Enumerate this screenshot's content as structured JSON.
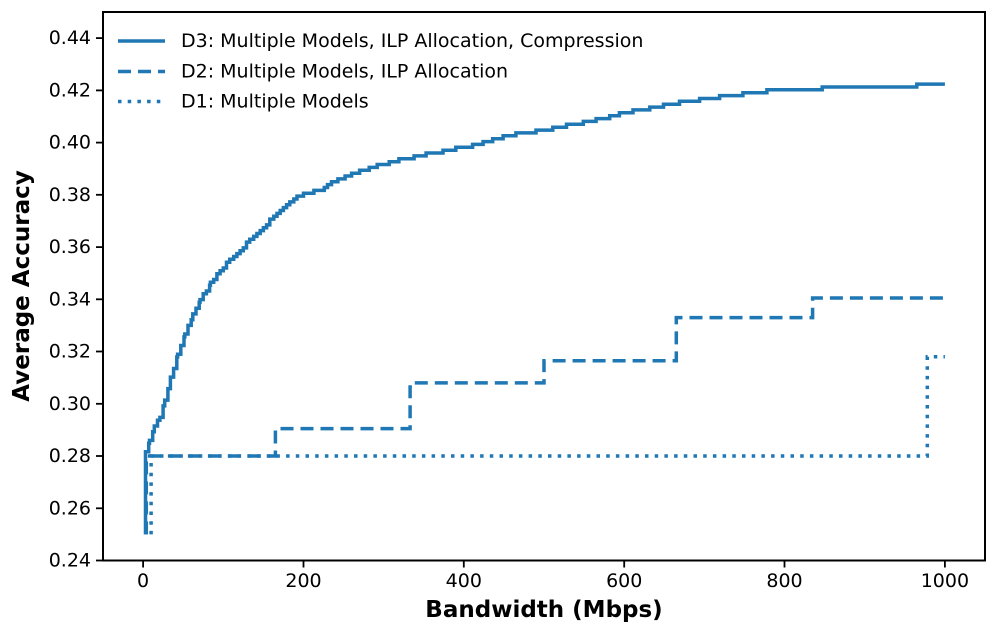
{
  "chart_data": {
    "type": "line",
    "title": "",
    "xlabel": "Bandwidth (Mbps)",
    "ylabel": "Average Accuracy",
    "xlim": [
      -50,
      1050
    ],
    "ylim": [
      0.24,
      0.45
    ],
    "x_ticks": [
      0,
      200,
      400,
      600,
      800,
      1000
    ],
    "x_tick_labels": [
      "0",
      "200",
      "400",
      "600",
      "800",
      "1000"
    ],
    "y_ticks": [
      0.24,
      0.26,
      0.28,
      0.3,
      0.32,
      0.34,
      0.36,
      0.38,
      0.4,
      0.42,
      0.44
    ],
    "y_tick_labels": [
      "0.24",
      "0.26",
      "0.28",
      "0.30",
      "0.32",
      "0.34",
      "0.36",
      "0.38",
      "0.40",
      "0.42",
      "0.44"
    ],
    "grid": false,
    "background": "#ffffff",
    "text_color": "#000000",
    "spine_color": "#000000",
    "line_color": "#1f77b4",
    "legend_position": "upper-left",
    "series": [
      {
        "name": "D3",
        "label": "D3: Multiple Models, ILP Allocation, Compression",
        "style": "solid",
        "render": "staircase",
        "points": [
          [
            3,
            0.25
          ],
          [
            3,
            0.2815
          ],
          [
            8,
            0.286
          ],
          [
            14,
            0.291
          ],
          [
            21,
            0.295
          ],
          [
            27,
            0.301
          ],
          [
            34,
            0.31
          ],
          [
            43,
            0.319
          ],
          [
            52,
            0.327
          ],
          [
            62,
            0.334
          ],
          [
            71,
            0.34
          ],
          [
            84,
            0.346
          ],
          [
            96,
            0.351
          ],
          [
            109,
            0.3555
          ],
          [
            121,
            0.359
          ],
          [
            134,
            0.363
          ],
          [
            146,
            0.3665
          ],
          [
            159,
            0.3705
          ],
          [
            171,
            0.374
          ],
          [
            184,
            0.3775
          ],
          [
            196,
            0.38
          ],
          [
            209,
            0.381
          ],
          [
            222,
            0.382
          ],
          [
            235,
            0.3845
          ],
          [
            248,
            0.3865
          ],
          [
            266,
            0.3885
          ],
          [
            284,
            0.3905
          ],
          [
            303,
            0.392
          ],
          [
            322,
            0.3935
          ],
          [
            345,
            0.395
          ],
          [
            370,
            0.3965
          ],
          [
            395,
            0.398
          ],
          [
            420,
            0.3995
          ],
          [
            445,
            0.402
          ],
          [
            470,
            0.4035
          ],
          [
            495,
            0.4045
          ],
          [
            520,
            0.406
          ],
          [
            545,
            0.4075
          ],
          [
            570,
            0.409
          ],
          [
            595,
            0.411
          ],
          [
            620,
            0.4125
          ],
          [
            645,
            0.414
          ],
          [
            670,
            0.4155
          ],
          [
            695,
            0.4165
          ],
          [
            720,
            0.4175
          ],
          [
            744,
            0.4185
          ],
          [
            770,
            0.4195
          ],
          [
            795,
            0.42
          ],
          [
            819,
            0.4205
          ],
          [
            850,
            0.4208
          ],
          [
            880,
            0.421
          ],
          [
            915,
            0.4212
          ],
          [
            945,
            0.4215
          ],
          [
            973,
            0.422
          ],
          [
            1000,
            0.4222
          ]
        ]
      },
      {
        "name": "D2",
        "label": "D2: Multiple Models, ILP Allocation",
        "style": "dashed",
        "render": "steps",
        "points": [
          [
            4,
            0.25
          ],
          [
            4,
            0.28
          ],
          [
            165,
            0.28
          ],
          [
            165,
            0.2905
          ],
          [
            333,
            0.2905
          ],
          [
            333,
            0.308
          ],
          [
            500,
            0.308
          ],
          [
            500,
            0.3165
          ],
          [
            665,
            0.3165
          ],
          [
            665,
            0.333
          ],
          [
            835,
            0.333
          ],
          [
            835,
            0.3405
          ],
          [
            1000,
            0.3405
          ]
        ]
      },
      {
        "name": "D1",
        "label": "D1: Multiple Models",
        "style": "dotted",
        "render": "steps",
        "points": [
          [
            10,
            0.25
          ],
          [
            10,
            0.28
          ],
          [
            978,
            0.28
          ],
          [
            978,
            0.318
          ],
          [
            1000,
            0.318
          ]
        ]
      }
    ]
  }
}
